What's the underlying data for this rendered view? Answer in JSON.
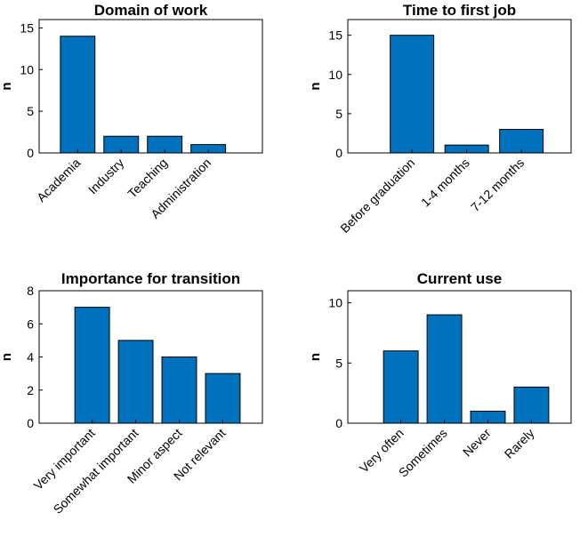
{
  "colors": {
    "bar": "#0072BD",
    "axis": "#000000"
  },
  "chart_data": [
    {
      "type": "bar",
      "title": "Domain of work",
      "ylabel": "n",
      "xlabel": "",
      "categories": [
        "Academia",
        "Industry",
        "Teaching",
        "Administration"
      ],
      "values": [
        14,
        2,
        2,
        1
      ],
      "ylim": [
        0,
        16
      ],
      "yticks": [
        0,
        5,
        10,
        15
      ],
      "ytick_labels": [
        "0",
        "5",
        "10",
        "15"
      ]
    },
    {
      "type": "bar",
      "title": "Time to first job",
      "ylabel": "n",
      "xlabel": "",
      "categories": [
        "Before graduation",
        "1-4 months",
        "7-12 months"
      ],
      "values": [
        15,
        1,
        3
      ],
      "ylim": [
        0,
        17
      ],
      "yticks": [
        0,
        5,
        10,
        15
      ],
      "ytick_labels": [
        "0",
        "5",
        "10",
        "15"
      ]
    },
    {
      "type": "bar",
      "title": "Importance for transition",
      "ylabel": "n",
      "xlabel": "",
      "categories": [
        "Very important",
        "Somewhat important",
        "Minor aspect",
        "Not relevant"
      ],
      "values": [
        7,
        5,
        4,
        3
      ],
      "ylim": [
        0,
        8
      ],
      "yticks": [
        0,
        2,
        4,
        6,
        8
      ],
      "ytick_labels": [
        "0",
        "2",
        "4",
        "6",
        "8"
      ]
    },
    {
      "type": "bar",
      "title": "Current use",
      "ylabel": "n",
      "xlabel": "",
      "categories": [
        "Very often",
        "Sometimes",
        "Never",
        "Rarely"
      ],
      "values": [
        6,
        9,
        1,
        3
      ],
      "ylim": [
        0,
        11
      ],
      "yticks": [
        0,
        5,
        10
      ],
      "ytick_labels": [
        "0",
        "5",
        "10"
      ]
    }
  ]
}
